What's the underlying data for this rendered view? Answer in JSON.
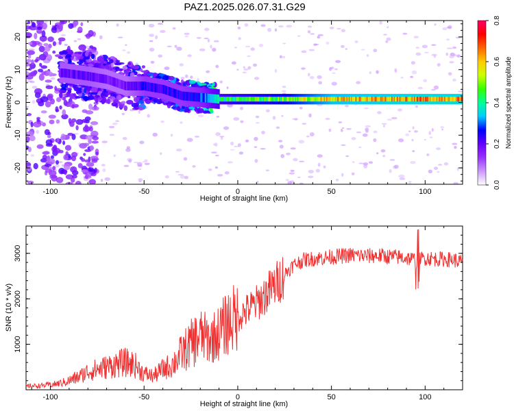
{
  "title": "PAZ1.2025.026.07.31.G29",
  "colors": {
    "snr_line": "#ee3030",
    "colormap": [
      "#ffffff",
      "#cc99ff",
      "#9933ff",
      "#6600ff",
      "#0000ff",
      "#00ccff",
      "#00ff99",
      "#33ff00",
      "#ccff00",
      "#ffcc00",
      "#ff6600",
      "#ff0000",
      "#ff0066"
    ]
  },
  "chart_data": [
    {
      "type": "heatmap",
      "xlabel": "Height of straight line (km)",
      "ylabel": "Frequency (Hz)",
      "xlim": [
        -113,
        120
      ],
      "ylim": [
        -25,
        25
      ],
      "x_ticks": [
        -100,
        -50,
        0,
        50,
        100
      ],
      "x_tick_labels": [
        "-100",
        "-50",
        "0",
        "50",
        "100"
      ],
      "y_ticks": [
        20,
        10,
        0,
        -10,
        -20
      ],
      "y_tick_labels": [
        "20",
        "10",
        "0",
        "-10",
        "-20"
      ],
      "grid": false,
      "colorbar": {
        "label": "Normalized spectral amplitude",
        "range": [
          0,
          0.8
        ],
        "ticks": [
          0.0,
          0.2,
          0.4,
          0.6,
          0.8
        ],
        "tick_labels": [
          "0.0",
          "0.2",
          "0.4",
          "0.6",
          "0.8"
        ]
      },
      "ridge": [
        {
          "x": -93,
          "frequency": 9,
          "amplitude": 0.25
        },
        {
          "x": -80,
          "frequency": 8,
          "amplitude": 0.25
        },
        {
          "x": -70,
          "frequency": 7,
          "amplitude": 0.22
        },
        {
          "x": -60,
          "frequency": 5,
          "amplitude": 0.22
        },
        {
          "x": -50,
          "frequency": 5,
          "amplitude": 0.3
        },
        {
          "x": -40,
          "frequency": 4,
          "amplitude": 0.3
        },
        {
          "x": -30,
          "frequency": 2,
          "amplitude": 0.3
        },
        {
          "x": -20,
          "frequency": 1.5,
          "amplitude": 0.35
        },
        {
          "x": -10,
          "frequency": 1,
          "amplitude": 0.5
        },
        {
          "x": 0,
          "frequency": 1,
          "amplitude": 0.55
        },
        {
          "x": 25,
          "frequency": 1,
          "amplitude": 0.6
        },
        {
          "x": 50,
          "frequency": 1,
          "amplitude": 0.75
        },
        {
          "x": 100,
          "frequency": 1,
          "amplitude": 0.8
        },
        {
          "x": 120,
          "frequency": 1,
          "amplitude": 0.8
        }
      ]
    },
    {
      "type": "line",
      "xlabel": "Height of straight line (km)",
      "ylabel": "SNR (10 * v/v)",
      "xlim": [
        -113,
        120
      ],
      "ylim": [
        0,
        3600
      ],
      "x_ticks": [
        -100,
        -50,
        0,
        50,
        100
      ],
      "x_tick_labels": [
        "-100",
        "-50",
        "0",
        "50",
        "100"
      ],
      "y_ticks": [
        1000,
        2000,
        3000
      ],
      "y_tick_labels": [
        "1000",
        "2000",
        "3000"
      ],
      "grid": false,
      "series": [
        {
          "x": [
            -113,
            -105,
            -100,
            -95,
            -90,
            -85,
            -80,
            -75,
            -70,
            -65,
            -60,
            -55,
            -50,
            -45,
            -40,
            -35,
            -30,
            -25,
            -20,
            -15,
            -10,
            -5,
            0,
            5,
            10,
            15,
            20,
            25,
            30,
            35,
            40,
            45,
            50,
            55,
            60,
            65,
            70,
            75,
            80,
            85,
            90,
            95,
            100,
            105,
            110,
            115,
            120
          ],
          "y": [
            80,
            90,
            110,
            140,
            200,
            280,
            400,
            450,
            500,
            560,
            600,
            550,
            350,
            300,
            450,
            550,
            800,
            1000,
            1200,
            1100,
            1250,
            1500,
            1600,
            1750,
            1900,
            2100,
            2300,
            2550,
            2750,
            2850,
            2880,
            2900,
            2920,
            2940,
            2960,
            2950,
            2940,
            2950,
            2930,
            2920,
            2900,
            2850,
            2900,
            2880,
            2870,
            2860,
            2800
          ]
        }
      ]
    }
  ]
}
